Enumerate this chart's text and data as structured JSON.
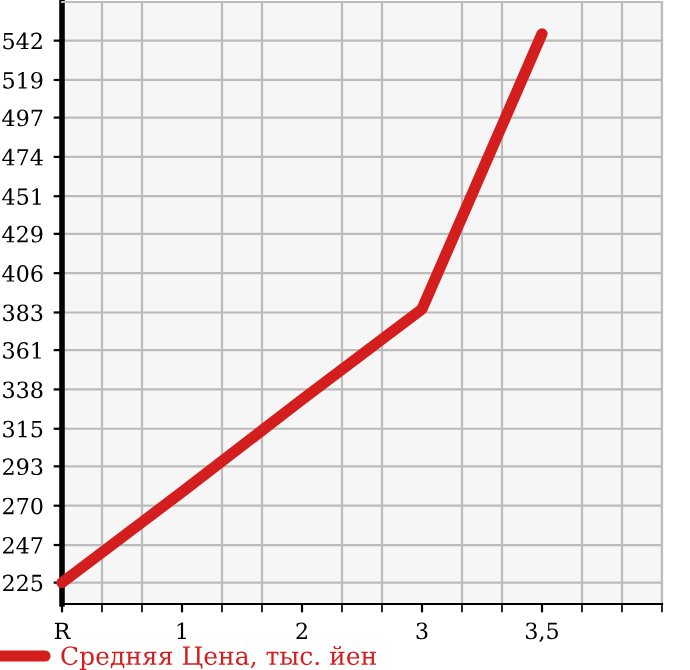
{
  "chart_data": {
    "type": "line",
    "categories": [
      "R",
      "1",
      "2",
      "3",
      "3,5"
    ],
    "series": [
      {
        "name": "Средняя Цена, тыс. йен",
        "color": "#d41e1e",
        "values": [
          225,
          278,
          332,
          385,
          546
        ]
      }
    ],
    "ylim": [
      212.5,
      564.6
    ],
    "yticks": [
      225,
      247,
      270,
      293,
      315,
      338,
      361,
      383,
      406,
      429,
      451,
      474,
      497,
      519,
      542
    ],
    "grid": true,
    "legend": "bottom",
    "marker": "none",
    "line_style": "solid"
  }
}
